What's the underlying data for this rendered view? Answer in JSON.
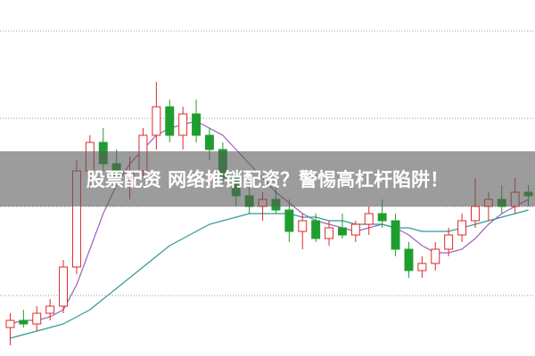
{
  "chart_data": {
    "type": "candlestick",
    "title": "股票配资 网络推销配资？警惕高杠杆陷阱！",
    "up_color": "#e02828",
    "down_color": "#1f9e2f",
    "ylim": [
      0,
      100
    ],
    "candles": [
      [
        8,
        12,
        3,
        10
      ],
      [
        10,
        13,
        8,
        9
      ],
      [
        9,
        14,
        7,
        12
      ],
      [
        12,
        16,
        10,
        14
      ],
      [
        14,
        27,
        12,
        25
      ],
      [
        25,
        55,
        23,
        52
      ],
      [
        52,
        62,
        48,
        60
      ],
      [
        60,
        64,
        52,
        54
      ],
      [
        54,
        58,
        48,
        50
      ],
      [
        50,
        56,
        44,
        52
      ],
      [
        52,
        64,
        50,
        62
      ],
      [
        62,
        77,
        58,
        70
      ],
      [
        70,
        72,
        60,
        62
      ],
      [
        62,
        70,
        58,
        68
      ],
      [
        68,
        72,
        60,
        62
      ],
      [
        62,
        64,
        55,
        58
      ],
      [
        58,
        60,
        48,
        50
      ],
      [
        50,
        52,
        42,
        45
      ],
      [
        45,
        50,
        40,
        42
      ],
      [
        42,
        46,
        38,
        44
      ],
      [
        44,
        48,
        40,
        41
      ],
      [
        41,
        44,
        32,
        35
      ],
      [
        35,
        40,
        30,
        38
      ],
      [
        38,
        40,
        32,
        33
      ],
      [
        33,
        38,
        31,
        36
      ],
      [
        36,
        40,
        33,
        34
      ],
      [
        34,
        38,
        32,
        37
      ],
      [
        37,
        42,
        34,
        40
      ],
      [
        40,
        44,
        36,
        38
      ],
      [
        38,
        40,
        28,
        30
      ],
      [
        30,
        32,
        22,
        24
      ],
      [
        24,
        28,
        22,
        26
      ],
      [
        26,
        32,
        24,
        30
      ],
      [
        30,
        36,
        28,
        34
      ],
      [
        34,
        40,
        32,
        38
      ],
      [
        38,
        50,
        36,
        42
      ],
      [
        42,
        46,
        38,
        44
      ],
      [
        44,
        48,
        40,
        42
      ],
      [
        42,
        50,
        40,
        46
      ],
      [
        46,
        48,
        42,
        45
      ]
    ],
    "lines": [
      {
        "color": "#a060b8",
        "values": [
          9,
          10,
          10,
          11,
          13,
          20,
          30,
          40,
          48,
          54,
          58,
          62,
          64,
          65,
          66,
          64,
          62,
          58,
          54,
          50,
          46,
          43,
          40,
          38,
          37,
          36,
          35,
          36,
          37,
          36,
          34,
          31,
          29,
          29,
          30,
          33,
          37,
          40,
          42,
          44
        ]
      },
      {
        "color": "#2f9a98",
        "values": [
          5,
          6,
          7,
          8,
          9,
          11,
          13,
          16,
          19,
          22,
          25,
          28,
          31,
          33,
          35,
          37,
          38,
          39,
          40,
          40,
          40,
          40,
          39,
          39,
          38,
          38,
          37,
          37,
          37,
          36,
          36,
          35,
          35,
          35,
          36,
          37,
          38,
          39,
          40,
          41
        ]
      }
    ]
  }
}
